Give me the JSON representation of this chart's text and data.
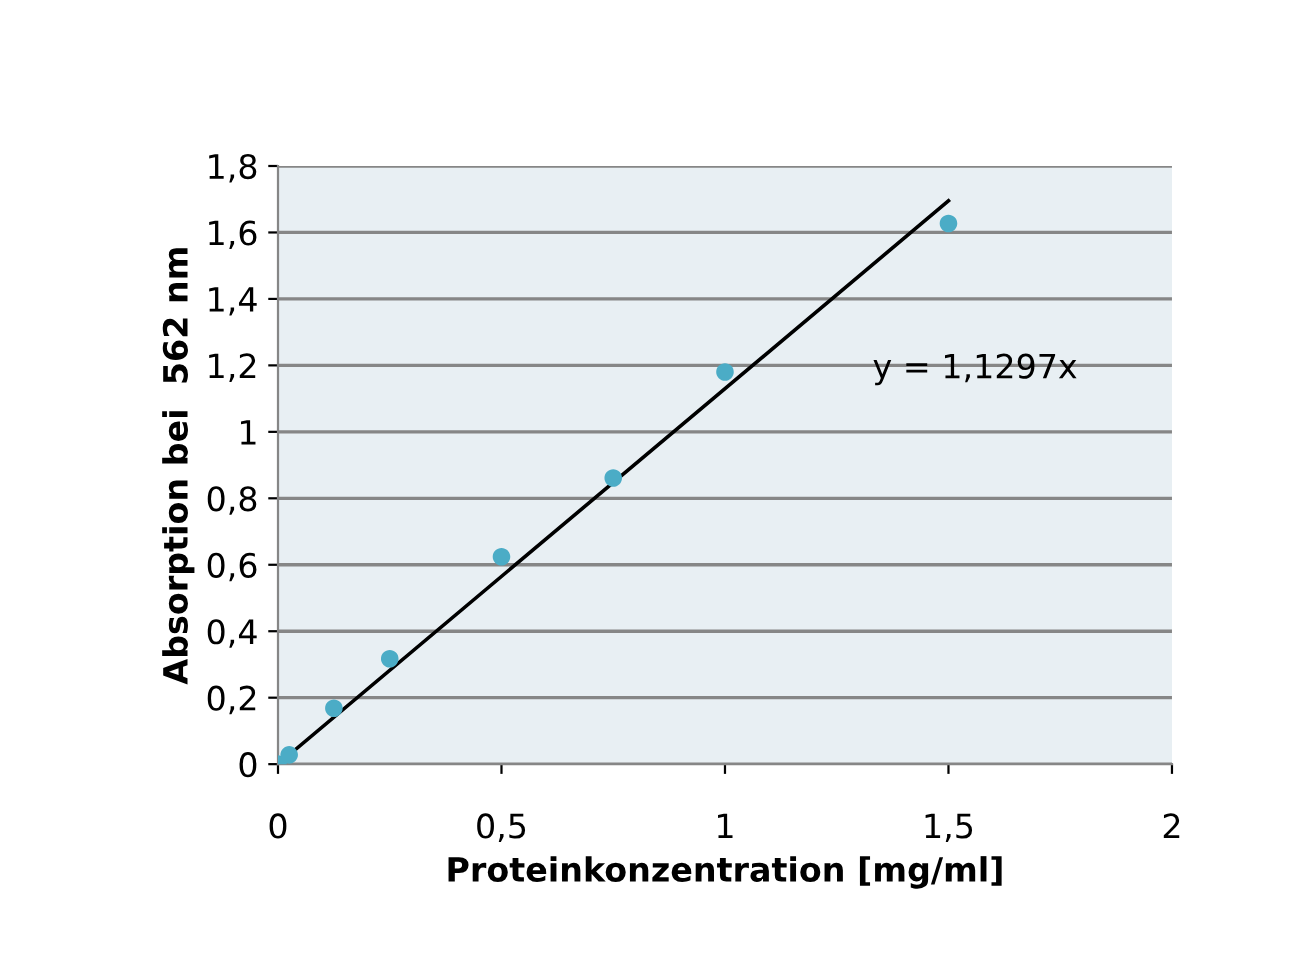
{
  "chart_data": {
    "type": "scatter",
    "xlabel": "Proteinkonzentration [mg/ml]",
    "ylabel": "Absorption bei  562 nm",
    "annotations": [
      "y = 1,1297x"
    ],
    "series": [
      {
        "marker": "circle",
        "color": "#4bacc6",
        "x": [
          0,
          0.025,
          0.125,
          0.25,
          0.5,
          0.75,
          1.0,
          1.5
        ],
        "values": [
          0,
          0.028,
          0.168,
          0.317,
          0.624,
          0.861,
          1.18,
          1.627
        ]
      },
      {
        "type": "line",
        "color": "#000000",
        "x": [
          0,
          1.5
        ],
        "values": [
          0,
          1.695
        ]
      }
    ],
    "grid": "y",
    "xlim": [
      0,
      2
    ],
    "xticks": [
      0,
      {
        "value": 0.5,
        "label": "0,5"
      },
      1,
      {
        "value": 1.5,
        "label": "1,5"
      },
      2
    ],
    "ylim": [
      0,
      1.8
    ],
    "yticks": [
      0,
      {
        "value": 0.2,
        "label": "0,2"
      },
      {
        "value": 0.4,
        "label": "0,4"
      },
      {
        "value": 0.6,
        "label": "0,6"
      },
      {
        "value": 0.8,
        "label": "0,8"
      },
      1,
      {
        "value": 1.2,
        "label": "1,2"
      },
      {
        "value": 1.4,
        "label": "1,4"
      },
      {
        "value": 1.6,
        "label": "1,6"
      },
      {
        "value": 1.8,
        "label": "1,8"
      }
    ]
  }
}
